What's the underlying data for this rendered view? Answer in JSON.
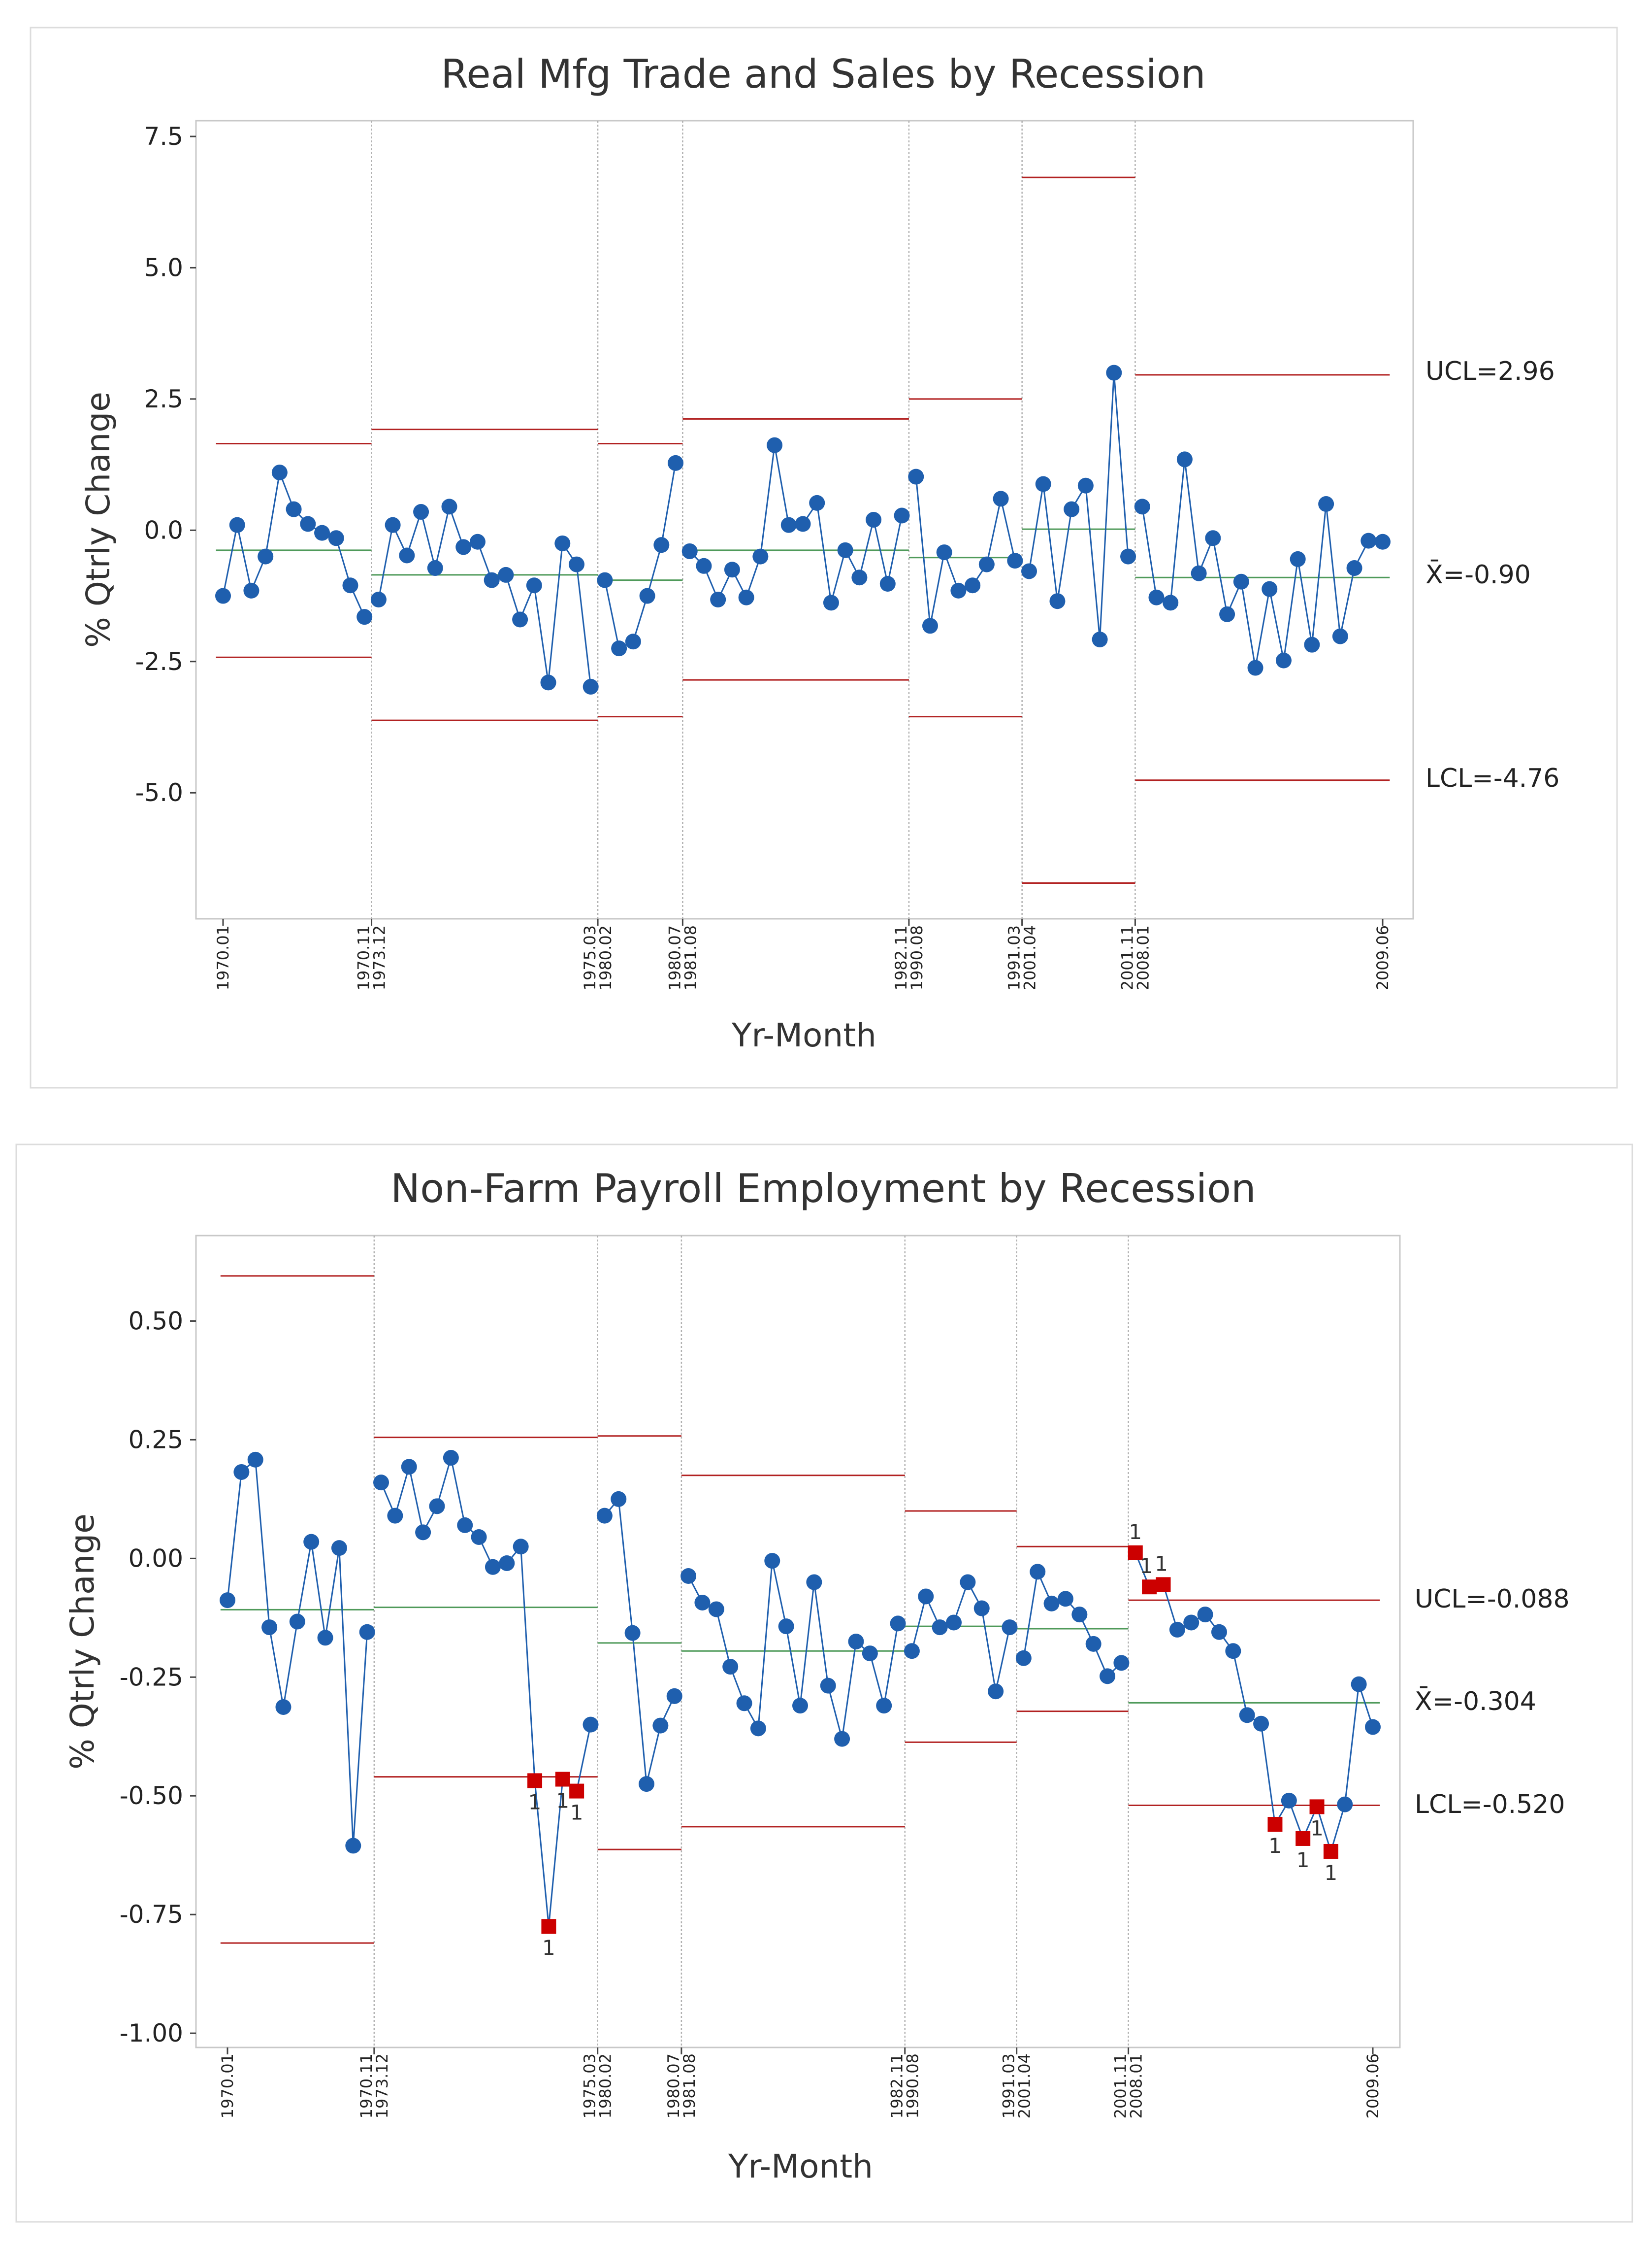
{
  "colors": {
    "point": "#1f5fae",
    "line": "#1f5fae",
    "flag_point": "#cc0000",
    "control_limit": "#b22222",
    "center_line": "#4f9a5a",
    "divider": "#b0b0b0"
  },
  "chart_data": [
    {
      "type": "line",
      "subtype": "control chart (I chart, stages by recession)",
      "title": "Real Mfg Trade and Sales by Recession",
      "xlabel": "Yr-Month",
      "ylabel": "% Qtrly Change",
      "ylim": [
        -7.4,
        7.8
      ],
      "yticks": [
        7.5,
        5.0,
        2.5,
        0.0,
        -2.5,
        -5.0
      ],
      "ytick_labels": [
        "7.5",
        "5.0",
        "2.5",
        "0.0",
        "-2.5",
        "-5.0"
      ],
      "stage_breaks": [
        11.5,
        27.5,
        33.5,
        49.5,
        57.5,
        65.5
      ],
      "x_ticks": [
        {
          "x": 1,
          "labels": [
            "1970.01"
          ]
        },
        {
          "x": 11.5,
          "labels": [
            "1970.11",
            "1973.12"
          ]
        },
        {
          "x": 27.5,
          "labels": [
            "1975.03",
            "1980.02"
          ]
        },
        {
          "x": 33.5,
          "labels": [
            "1980.07",
            "1981.08"
          ]
        },
        {
          "x": 49.5,
          "labels": [
            "1982.11",
            "1990.08"
          ]
        },
        {
          "x": 57.5,
          "labels": [
            "1991.03",
            "2001.04"
          ]
        },
        {
          "x": 65.5,
          "labels": [
            "2001.11",
            "2008.01"
          ]
        },
        {
          "x": 83,
          "labels": [
            "2009.06"
          ]
        }
      ],
      "stages": [
        {
          "start": 1,
          "end": 11,
          "ucl": 1.65,
          "mean": -0.38,
          "lcl": -2.42
        },
        {
          "start": 12,
          "end": 27,
          "ucl": 1.92,
          "mean": -0.85,
          "lcl": -3.62
        },
        {
          "start": 28,
          "end": 33,
          "ucl": 1.65,
          "mean": -0.95,
          "lcl": -3.55
        },
        {
          "start": 34,
          "end": 49,
          "ucl": 2.12,
          "mean": -0.38,
          "lcl": -2.85
        },
        {
          "start": 50,
          "end": 57,
          "ucl": 2.5,
          "mean": -0.52,
          "lcl": -3.55
        },
        {
          "start": 58,
          "end": 65,
          "ucl": 6.72,
          "mean": 0.02,
          "lcl": -6.72
        },
        {
          "start": 66,
          "end": 83,
          "ucl": 2.96,
          "mean": -0.9,
          "lcl": -4.76
        }
      ],
      "values": [
        -1.25,
        0.1,
        -1.15,
        -0.5,
        1.1,
        0.4,
        0.12,
        -0.05,
        -0.15,
        -1.05,
        -1.65,
        -1.32,
        0.1,
        -0.48,
        0.35,
        -0.72,
        0.45,
        -0.32,
        -0.22,
        -0.95,
        -0.85,
        -1.7,
        -1.05,
        -2.9,
        -0.25,
        -0.65,
        -2.98,
        -0.95,
        -2.25,
        -2.12,
        -1.25,
        -0.28,
        1.28,
        -0.4,
        -0.68,
        -1.32,
        -0.75,
        -1.28,
        -0.5,
        1.62,
        0.1,
        0.12,
        0.52,
        -1.38,
        -0.38,
        -0.9,
        0.2,
        -1.02,
        0.28,
        1.02,
        -1.82,
        -0.42,
        -1.15,
        -1.05,
        -0.65,
        0.6,
        -0.58,
        -0.78,
        0.88,
        -1.35,
        0.4,
        0.85,
        -2.08,
        3.0,
        -0.5,
        0.45,
        -1.28,
        -1.38,
        1.35,
        -0.82,
        -0.15,
        -1.6,
        -0.98,
        -2.62,
        -1.12,
        -2.48,
        -0.55,
        -2.18,
        0.5,
        -2.02,
        -0.72,
        -0.2,
        -0.22
      ],
      "flagged": [],
      "ref_labels": {
        "ucl": "UCL=2.96",
        "mean": "X̄=-0.90",
        "lcl": "LCL=-4.76"
      }
    },
    {
      "type": "line",
      "subtype": "control chart (I chart, stages by recession)",
      "title": "Non-Farm Payroll Employment by Recession",
      "xlabel": "Yr-Month",
      "ylabel": "% Qtrly Change",
      "ylim": [
        -1.03,
        0.68
      ],
      "yticks": [
        0.5,
        0.25,
        0.0,
        -0.25,
        -0.5,
        -0.75,
        -1.0
      ],
      "ytick_labels": [
        "0.50",
        "0.25",
        "0.00",
        "-0.25",
        "-0.50",
        "-0.75",
        "-1.00"
      ],
      "stage_breaks": [
        11.5,
        27.5,
        33.5,
        49.5,
        57.5,
        65.5
      ],
      "x_ticks": [
        {
          "x": 1,
          "labels": [
            "1970.01"
          ]
        },
        {
          "x": 11.5,
          "labels": [
            "1970.11",
            "1973.12"
          ]
        },
        {
          "x": 27.5,
          "labels": [
            "1975.03",
            "1980.02"
          ]
        },
        {
          "x": 33.5,
          "labels": [
            "1980.07",
            "1981.08"
          ]
        },
        {
          "x": 49.5,
          "labels": [
            "1982.11",
            "1990.08"
          ]
        },
        {
          "x": 57.5,
          "labels": [
            "1991.03",
            "2001.04"
          ]
        },
        {
          "x": 65.5,
          "labels": [
            "2001.11",
            "2008.01"
          ]
        },
        {
          "x": 83,
          "labels": [
            "2009.06"
          ]
        }
      ],
      "stages": [
        {
          "start": 1,
          "end": 11,
          "ucl": 0.595,
          "mean": -0.108,
          "lcl": -0.81
        },
        {
          "start": 12,
          "end": 27,
          "ucl": 0.255,
          "mean": -0.103,
          "lcl": -0.46
        },
        {
          "start": 28,
          "end": 33,
          "ucl": 0.258,
          "mean": -0.178,
          "lcl": -0.613
        },
        {
          "start": 34,
          "end": 49,
          "ucl": 0.175,
          "mean": -0.195,
          "lcl": -0.565
        },
        {
          "start": 50,
          "end": 57,
          "ucl": 0.1,
          "mean": -0.143,
          "lcl": -0.387
        },
        {
          "start": 58,
          "end": 65,
          "ucl": 0.025,
          "mean": -0.148,
          "lcl": -0.322
        },
        {
          "start": 66,
          "end": 83,
          "ucl": -0.088,
          "mean": -0.304,
          "lcl": -0.52
        }
      ],
      "values": [
        -0.088,
        0.182,
        0.208,
        -0.145,
        -0.313,
        -0.133,
        0.035,
        -0.167,
        0.022,
        -0.605,
        -0.155,
        0.16,
        0.09,
        0.193,
        0.055,
        0.11,
        0.212,
        0.07,
        0.045,
        -0.018,
        -0.01,
        0.025,
        -0.468,
        -0.775,
        -0.465,
        -0.49,
        -0.35,
        0.09,
        0.125,
        -0.157,
        -0.475,
        -0.352,
        -0.29,
        -0.037,
        -0.093,
        -0.107,
        -0.228,
        -0.305,
        -0.358,
        -0.005,
        -0.143,
        -0.31,
        -0.05,
        -0.268,
        -0.38,
        -0.175,
        -0.2,
        -0.31,
        -0.137,
        -0.195,
        -0.08,
        -0.145,
        -0.135,
        -0.05,
        -0.105,
        -0.28,
        -0.145,
        -0.21,
        -0.028,
        -0.095,
        -0.085,
        -0.118,
        -0.18,
        -0.248,
        -0.22,
        0.012,
        -0.06,
        -0.055,
        -0.15,
        -0.135,
        -0.118,
        -0.155,
        -0.195,
        -0.33,
        -0.348,
        -0.56,
        -0.51,
        -0.59,
        -0.523,
        -0.617,
        -0.518,
        -0.265,
        -0.355
      ],
      "flagged": [
        23,
        24,
        25,
        26,
        66,
        67,
        68,
        76,
        78,
        79,
        80
      ],
      "flag_label": "1",
      "ref_labels": {
        "ucl": "UCL=-0.088",
        "mean": "X̄=-0.304",
        "lcl": "LCL=-0.520"
      }
    }
  ]
}
